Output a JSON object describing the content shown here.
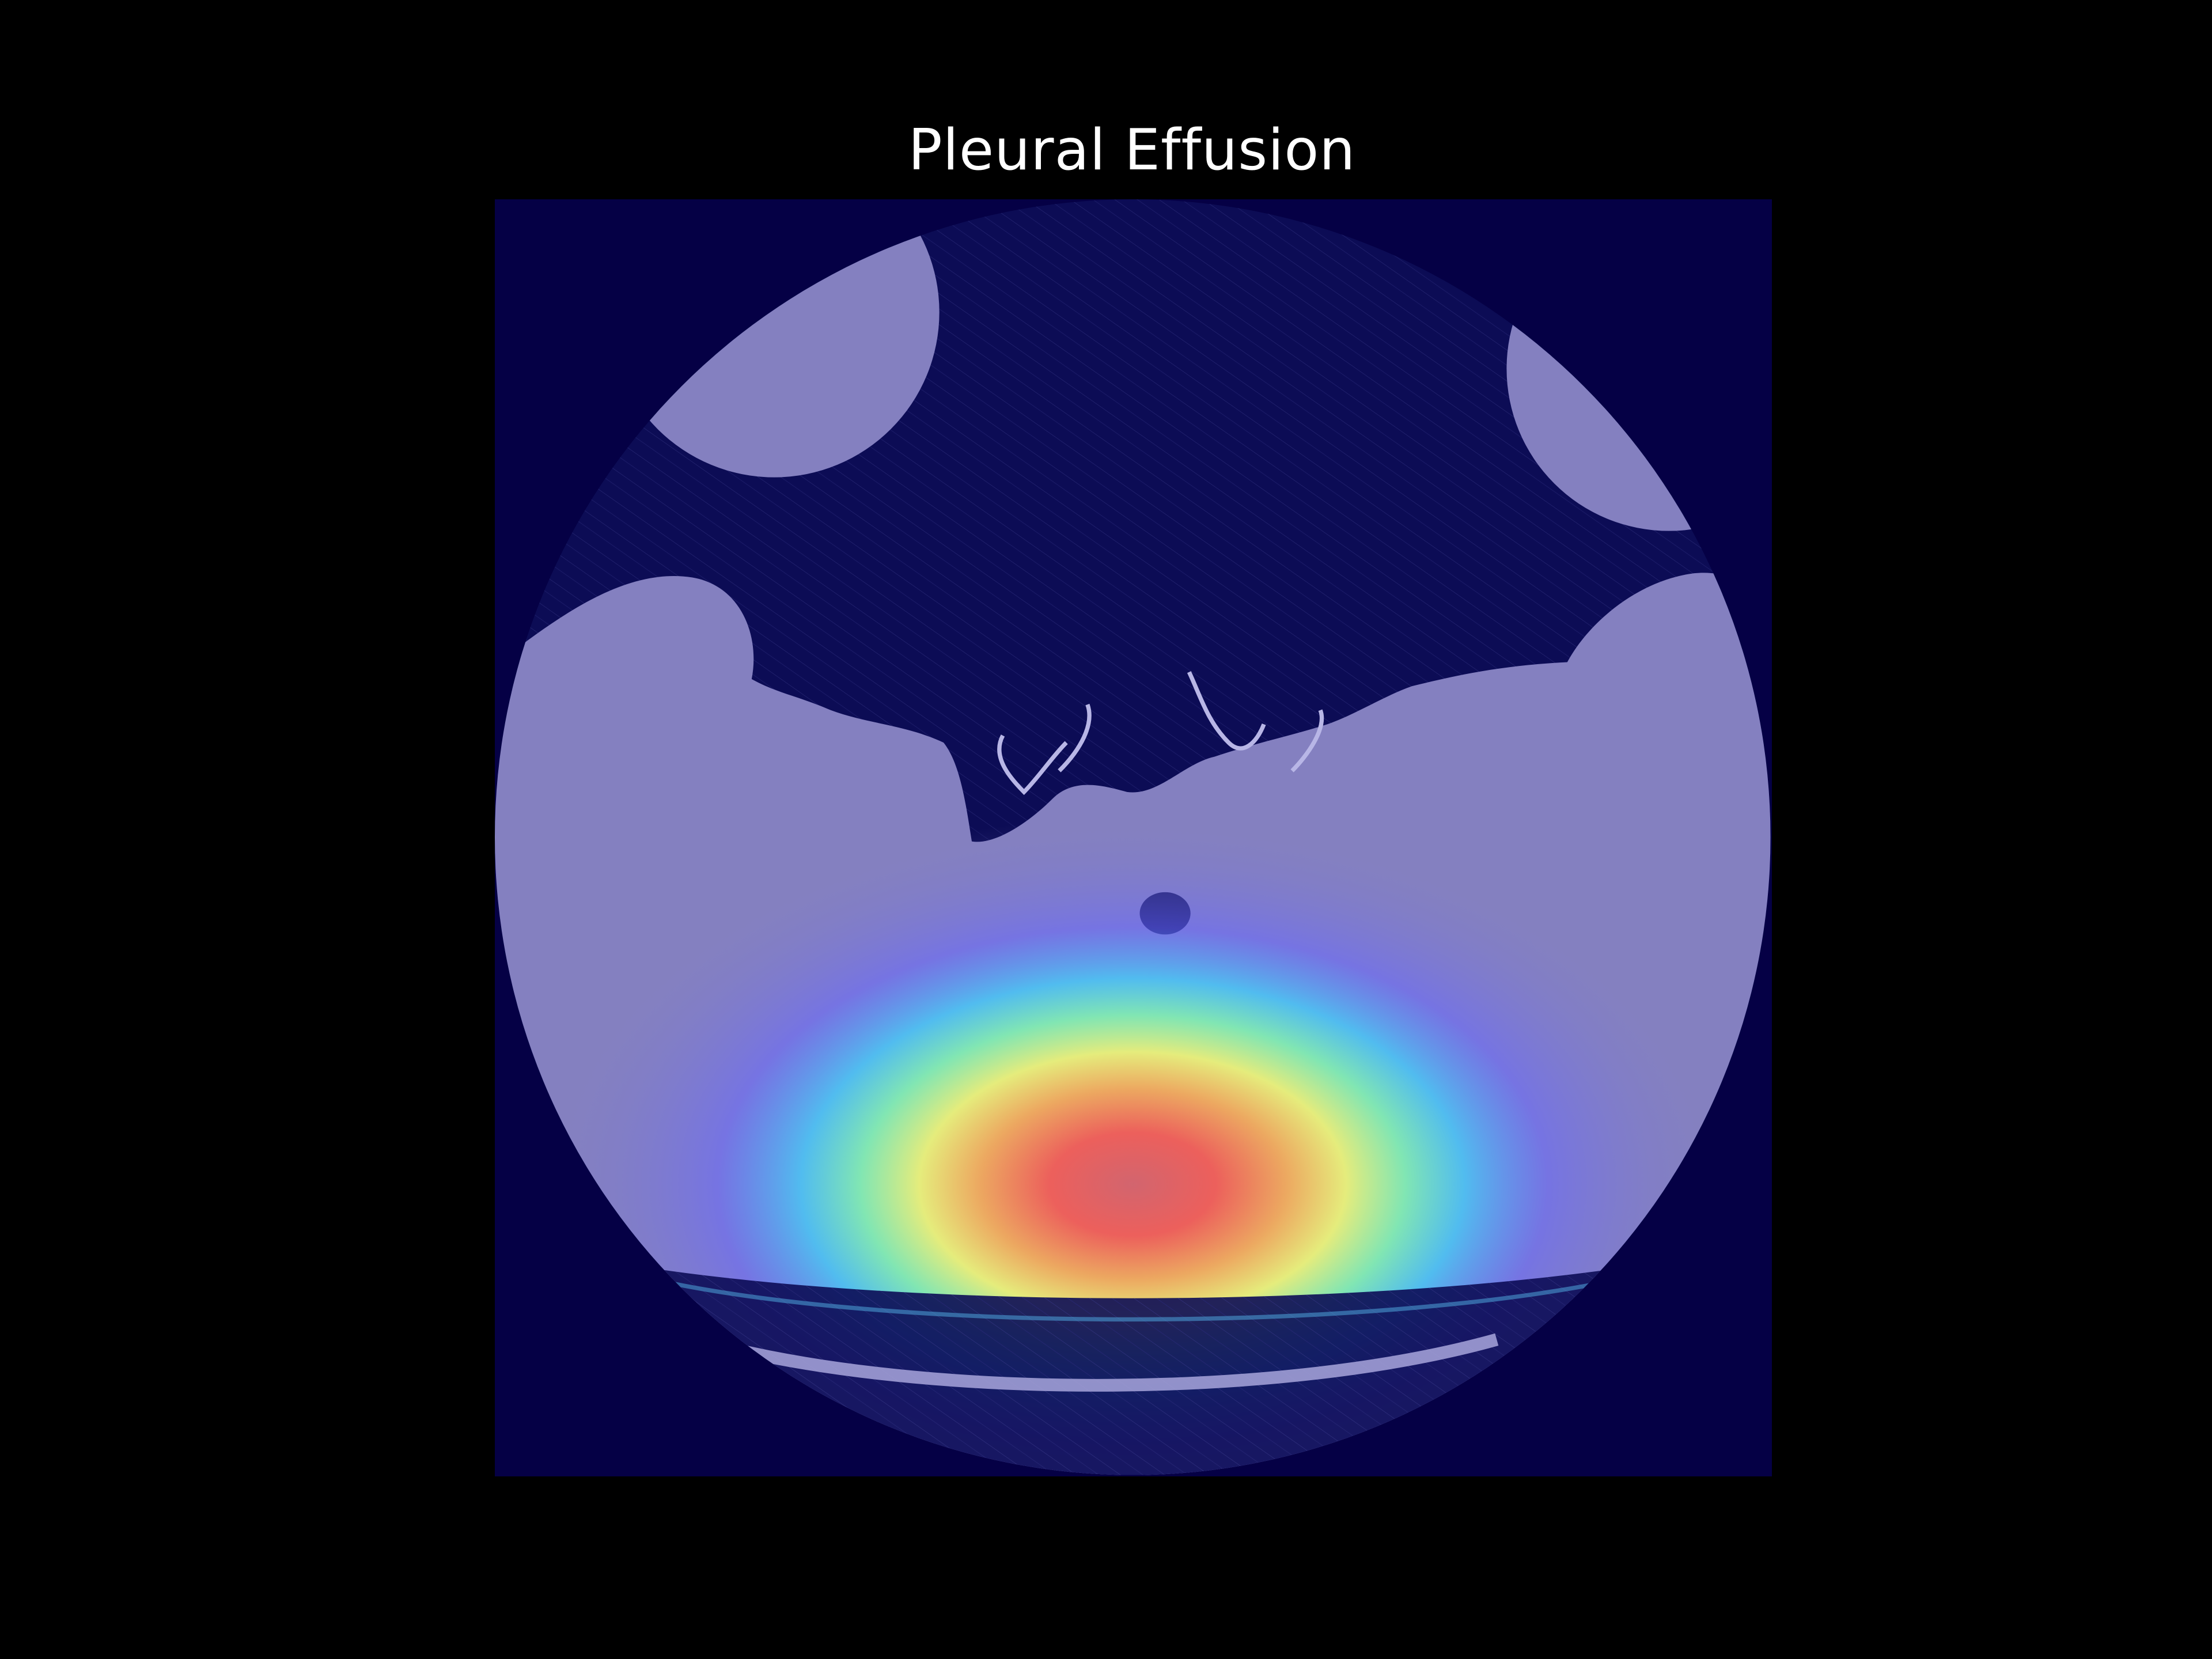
{
  "title": "Pleural Effusion",
  "colors": {
    "figure_background": "#000000",
    "title_text": "#ffffff",
    "outside_field": "#050045",
    "air_region": "#0c0c55",
    "tissue": "#8480c0",
    "tissue_highlight": "#a8a6dc",
    "heatmap_scale": [
      "#000080",
      "#4040ff",
      "#00c0ff",
      "#40ffc0",
      "#ffff40",
      "#ff8040",
      "#ff2020"
    ]
  },
  "image": {
    "kind": "axial CT slice with Grad-CAM style heatmap overlay",
    "overlay": "jet colormap, peak activation in the dorsal region"
  }
}
